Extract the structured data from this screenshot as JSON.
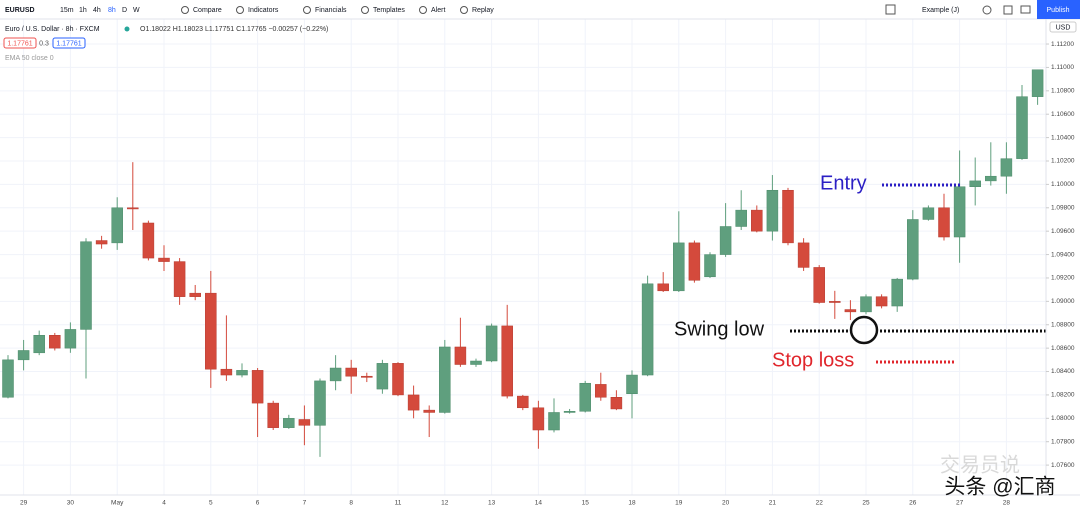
{
  "toolbar": {
    "symbol": "EURUSD",
    "intervals": [
      "15m",
      "1h",
      "4h",
      "8h",
      "D",
      "W"
    ],
    "active_interval": 3,
    "buttons": [
      "Compare",
      "Indicators",
      "Financials",
      "Templates",
      "Alert",
      "Replay"
    ],
    "layout_name": "Example (J)",
    "publish": "Publish"
  },
  "legend": {
    "title": "Euro / U.S. Dollar · 8h · FXCM",
    "ohlc": "O1.18022 H1.18023 L1.17751 C1.17765 −0.00257 (−0.22%)",
    "bid": "1.17761",
    "spread": "0.3",
    "ask": "1.17761",
    "indicator": "EMA 50 close 0"
  },
  "currency": "USD",
  "watermark": [
    "交易员说",
    "头条 @汇商"
  ],
  "chart_data": {
    "type": "candlestick",
    "up_color": "#5f9f7e",
    "down_color": "#d44a3c",
    "grid": true,
    "categories": [
      null,
      "29",
      null,
      null,
      "30",
      null,
      null,
      "May",
      null,
      null,
      "4",
      null,
      null,
      "5",
      null,
      null,
      "6",
      null,
      null,
      "7",
      null,
      null,
      "8",
      null,
      null,
      "11",
      null,
      null,
      "12",
      null,
      null,
      "13",
      null,
      null,
      "14",
      null,
      null,
      "15",
      null,
      null,
      "18",
      null,
      null,
      "19",
      null,
      null,
      "20",
      null,
      null,
      "21",
      null,
      null,
      "22",
      null,
      null,
      "25",
      null,
      null,
      "26",
      null,
      null,
      "27",
      null,
      null,
      "28",
      null,
      null
    ],
    "open": [
      1.0818,
      1.085,
      1.0856,
      1.0871,
      1.086,
      1.0876,
      1.0952,
      1.095,
      1.098,
      1.0967,
      1.0937,
      1.0934,
      1.0907,
      1.0907,
      1.0842,
      1.0837,
      1.0841,
      1.0813,
      1.0792,
      1.0799,
      1.0794,
      1.0832,
      1.0843,
      1.0836,
      1.0825,
      1.0847,
      1.082,
      1.0807,
      1.0805,
      1.0861,
      1.0846,
      1.0849,
      1.0879,
      1.0819,
      1.0809,
      1.079,
      1.0805,
      1.0806,
      1.0829,
      1.0818,
      1.0821,
      1.0837,
      1.0915,
      1.0909,
      1.095,
      1.0921,
      1.094,
      1.0964,
      1.0978,
      1.096,
      1.0995,
      1.095,
      1.0929,
      1.09,
      1.0893,
      1.0891,
      1.0904,
      1.0896,
      1.0919,
      1.097,
      1.098,
      1.0955,
      1.0998,
      1.1003,
      1.1007,
      1.1022,
      1.1075
    ],
    "high": [
      1.0854,
      1.0867,
      1.0875,
      1.0873,
      1.0882,
      1.0954,
      1.0956,
      1.0989,
      1.1019,
      1.0969,
      1.0948,
      1.0937,
      1.0914,
      1.0926,
      1.0888,
      1.0847,
      1.0843,
      1.0815,
      1.0803,
      1.0811,
      1.0834,
      1.0854,
      1.085,
      1.0839,
      1.085,
      1.0848,
      1.0828,
      1.0811,
      1.0867,
      1.0886,
      1.0851,
      1.0881,
      1.0897,
      1.082,
      1.0815,
      1.0817,
      1.0808,
      1.0832,
      1.0839,
      1.0824,
      1.0841,
      1.0922,
      1.0925,
      1.0977,
      1.0952,
      1.0942,
      1.0984,
      1.0995,
      1.0982,
      1.1008,
      1.0997,
      1.0954,
      1.0931,
      1.0909,
      1.0901,
      1.0906,
      1.0906,
      1.092,
      1.0978,
      1.0982,
      1.0992,
      1.1029,
      1.1023,
      1.1036,
      1.1036,
      1.1085,
      1.1098
    ],
    "low": [
      1.0817,
      1.0841,
      1.0854,
      1.0858,
      1.0856,
      1.0834,
      1.0945,
      1.0944,
      1.0961,
      1.0935,
      1.0926,
      1.0897,
      1.0901,
      1.0826,
      1.0832,
      1.0835,
      1.0784,
      1.079,
      1.0791,
      1.0777,
      1.0767,
      1.0824,
      1.0821,
      1.0831,
      1.0821,
      1.0819,
      1.08,
      1.0784,
      1.0804,
      1.0844,
      1.0844,
      1.0848,
      1.0817,
      1.0807,
      1.0774,
      1.0788,
      1.0804,
      1.0805,
      1.0815,
      1.0807,
      1.08,
      1.0836,
      1.0908,
      1.0908,
      1.0916,
      1.092,
      1.0938,
      1.0961,
      1.0959,
      1.0952,
      1.0948,
      1.0926,
      1.0898,
      1.0885,
      1.0884,
      1.0889,
      1.0894,
      1.0891,
      1.0918,
      1.0969,
      1.0952,
      1.0933,
      1.0982,
      1.0999,
      1.0992,
      1.1021,
      1.1068
    ],
    "close": [
      1.085,
      1.0858,
      1.0871,
      1.086,
      1.0876,
      1.0951,
      1.0949,
      1.098,
      1.0979,
      1.0937,
      1.0934,
      1.0904,
      1.0904,
      1.0842,
      1.0837,
      1.0841,
      1.0813,
      1.0792,
      1.08,
      1.0794,
      1.0832,
      1.0843,
      1.0836,
      1.0835,
      1.0847,
      1.082,
      1.0807,
      1.0805,
      1.0861,
      1.0846,
      1.0849,
      1.0879,
      1.0819,
      1.0809,
      1.079,
      1.0805,
      1.0806,
      1.083,
      1.0818,
      1.0808,
      1.0837,
      1.0915,
      1.0909,
      1.095,
      1.0918,
      1.094,
      1.0964,
      1.0978,
      1.096,
      1.0995,
      1.095,
      1.0929,
      1.0899,
      1.0899,
      1.0891,
      1.0904,
      1.0896,
      1.0919,
      1.097,
      1.098,
      1.0955,
      1.0998,
      1.1003,
      1.1007,
      1.1022,
      1.1075,
      1.1098
    ],
    "ylim": [
      1.0737,
      1.1132
    ],
    "yticks": [
      {
        "value": 1.076,
        "label": "1.07600"
      },
      {
        "value": 1.078,
        "label": "1.07800"
      },
      {
        "value": 1.08,
        "label": "1.08000"
      },
      {
        "value": 1.082,
        "label": "1.08200"
      },
      {
        "value": 1.084,
        "label": "1.08400"
      },
      {
        "value": 1.086,
        "label": "1.08600"
      },
      {
        "value": 1.088,
        "label": "1.08800"
      },
      {
        "value": 1.09,
        "label": "1.09000"
      },
      {
        "value": 1.092,
        "label": "1.09200"
      },
      {
        "value": 1.094,
        "label": "1.09400"
      },
      {
        "value": 1.096,
        "label": "1.09600"
      },
      {
        "value": 1.098,
        "label": "1.09800"
      },
      {
        "value": 1.1,
        "label": "1.10000"
      },
      {
        "value": 1.102,
        "label": "1.10200"
      },
      {
        "value": 1.104,
        "label": "1.10400"
      },
      {
        "value": 1.106,
        "label": "1.10600"
      },
      {
        "value": 1.108,
        "label": "1.10800"
      },
      {
        "value": 1.11,
        "label": "1.11000"
      },
      {
        "value": 1.112,
        "label": "1.11200"
      }
    ],
    "annotations": [
      {
        "text": "Entry",
        "color": "#2b1fc4"
      },
      {
        "text": "Swing low",
        "color": "#111111"
      },
      {
        "text": "Stop loss",
        "color": "#e0262c"
      }
    ]
  }
}
